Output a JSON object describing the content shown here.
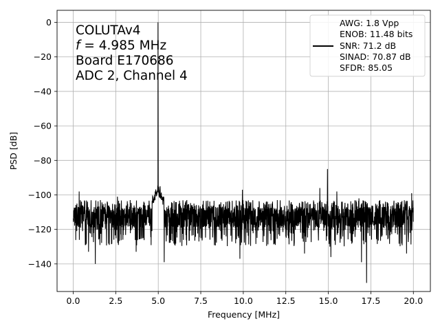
{
  "chart_data": {
    "type": "line",
    "xlabel": "Frequency [MHz]",
    "ylabel": "PSD [dB]",
    "xlim": [
      -0.95,
      21.0
    ],
    "ylim": [
      -156,
      7
    ],
    "xticks": [
      0.0,
      2.5,
      5.0,
      7.5,
      10.0,
      12.5,
      15.0,
      17.5,
      20.0
    ],
    "xtick_labels": [
      "0.0",
      "2.5",
      "5.0",
      "7.5",
      "10.0",
      "12.5",
      "15.0",
      "17.5",
      "20.0"
    ],
    "yticks": [
      0,
      -20,
      -40,
      -60,
      -80,
      -100,
      -120,
      -140
    ],
    "ytick_labels": [
      "0",
      "−20",
      "−40",
      "−60",
      "−80",
      "−100",
      "−120",
      "−140"
    ],
    "grid": true,
    "legend_position": "top-right",
    "annotation": {
      "line1": "COLUTAv4",
      "line2_var": "f",
      "line2_rest": " = 4.985 MHz",
      "line3": "Board E170686",
      "line4": "ADC 2, Channel 4"
    },
    "legend": {
      "lines": [
        "AWG: 1.8 Vpp",
        "ENOB: 11.48 bits",
        "SNR: 71.2 dB",
        "SINAD: 70.87 dB",
        "SFDR: 85.05"
      ]
    },
    "series": [
      {
        "color": "#000000",
        "noise_floor_db": -113,
        "noise_range_db": [
          -130,
          -102
        ],
        "peaks": [
          {
            "x": 4.985,
            "y": 0
          },
          {
            "x": 4.86,
            "y": -98
          },
          {
            "x": 5.11,
            "y": -95
          },
          {
            "x": 4.7,
            "y": -104
          },
          {
            "x": 5.3,
            "y": -101
          },
          {
            "x": 14.95,
            "y": -85
          },
          {
            "x": 14.5,
            "y": -96
          },
          {
            "x": 15.5,
            "y": -98
          },
          {
            "x": 9.95,
            "y": -97
          },
          {
            "x": 0.35,
            "y": -98
          },
          {
            "x": 19.9,
            "y": -99
          },
          {
            "x": 16.8,
            "y": -102
          },
          {
            "x": 2.6,
            "y": -101
          },
          {
            "x": 12.0,
            "y": -103
          }
        ],
        "dips": [
          {
            "x": 17.25,
            "y": -151
          },
          {
            "x": 1.3,
            "y": -140
          },
          {
            "x": 5.35,
            "y": -139
          },
          {
            "x": 16.95,
            "y": -139
          },
          {
            "x": 0.9,
            "y": -133
          },
          {
            "x": 9.8,
            "y": -137
          },
          {
            "x": 15.15,
            "y": -136
          },
          {
            "x": 3.7,
            "y": -133
          },
          {
            "x": 13.6,
            "y": -134
          },
          {
            "x": 19.6,
            "y": -134
          }
        ]
      }
    ]
  }
}
